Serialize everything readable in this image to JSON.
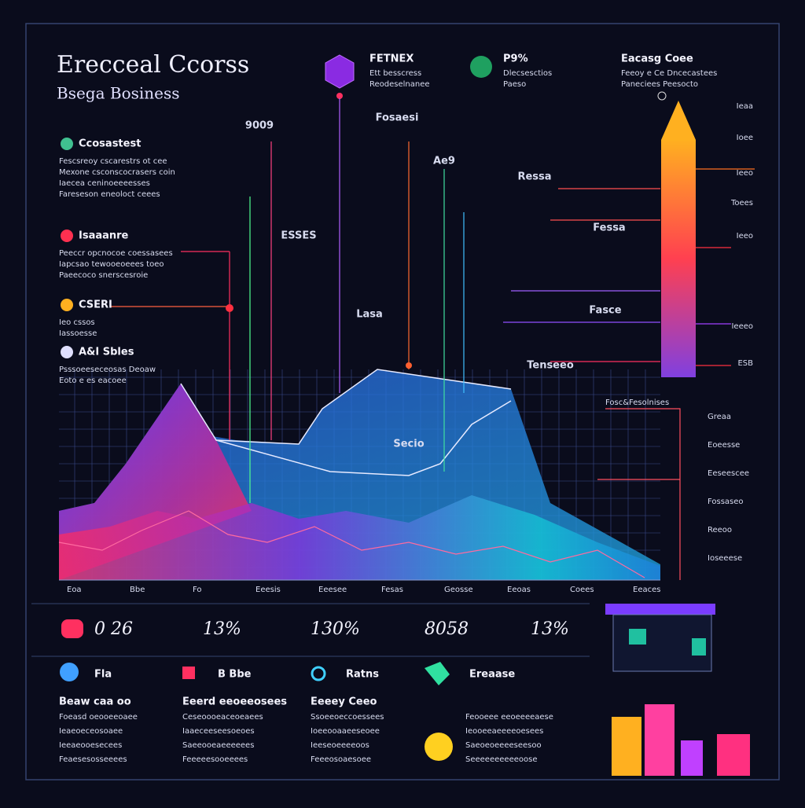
{
  "header": {
    "title": "Erecceal Ccorss",
    "subtitle": "Bsega Bosiness"
  },
  "top_notes": [
    {
      "title": "FETNEX",
      "lines": [
        "Ett besscress",
        "Reodeselnanee"
      ]
    },
    {
      "title": "P9%",
      "lines": [
        "Dlecsesctios",
        "Paeso"
      ]
    },
    {
      "title": "Eacasg Coee",
      "lines": [
        "Feeoy e Ce Dncecastees",
        "Paneciees Peesocto"
      ]
    }
  ],
  "left_sections": [
    {
      "title": "Ccosastest",
      "lines": [
        "Fescsreoy cscarestrs ot cee",
        "Mexone csconscocrasers coin",
        "Iaecea ceninoeeeesses",
        "Fareseson eneoloct ceees"
      ]
    },
    {
      "title": "Isaaanre",
      "lines": [
        "Peeccr opcnocoe coessasees",
        "Iapcsao tewooeoeees toeo",
        "Paeecoco snerscesroie"
      ]
    },
    {
      "title": "CSERI",
      "lines": [
        "Ieo cssos",
        "Iassoesse"
      ]
    },
    {
      "title": "A&I Sbles",
      "lines": [
        "Psssoeeseceosas Deoaw",
        "Eoto e es eacoee"
      ]
    }
  ],
  "callouts": [
    "9009",
    "Fosaesi",
    "Ae9",
    "Ressa",
    "ESSES",
    "Fessa",
    "Lasa",
    "Fasce",
    "Tenseeo",
    "Secio"
  ],
  "right_labels": [
    "Ieaa",
    "Ioee",
    "Ieeo",
    "Toees",
    "Ieeo",
    "Ieeeo",
    "ESB"
  ],
  "axis_labels": [
    "Eoa",
    "Bbe",
    "Fo",
    "Eeesis",
    "Eeesee",
    "Fesas",
    "Geosse",
    "Eeoas",
    "Coees",
    "Eeaces"
  ],
  "legend_box": {
    "title": "Fosc&Fesolnises",
    "items": [
      "Greaa",
      "Eoeesse",
      "Eeseescee",
      "Fossaseo",
      "Reeoo",
      "Ioseeese"
    ]
  },
  "stats": [
    "0 26",
    "13%",
    "130%",
    "8058",
    "13%"
  ],
  "cards": [
    {
      "title": "Fla",
      "subtitle": "Beaw caa oo",
      "lines": [
        "Foeasd oeooeeoaee",
        "Ieaeoeceosoaee",
        "Ieeaeooesecees",
        "Feaesesosseeees"
      ]
    },
    {
      "title": "B Bbe",
      "subtitle": "Eeerd eeoeeosees",
      "lines": [
        "Ceseoooeaceoeaees",
        "Iaaeceeseesoeoes",
        "Saeeooeaeeeeees",
        "Feeeeesooeeees"
      ]
    },
    {
      "title": "Ratns",
      "subtitle": "Eeeey Ceeo",
      "lines": [
        "Ssoeeoeccoessees",
        "Ioeeooaaeeseoee",
        "Ieeseoeeeeoos",
        "Feeeosoaesoee"
      ]
    },
    {
      "title": "Ereaase",
      "subtitle": "",
      "lines": [
        "Feooeee eeoeeeeaese",
        "Ieooeeaeeeeoesees",
        "Saeoeoeeeeseesoo",
        "Seeeeeeeeeeoose"
      ]
    }
  ]
}
